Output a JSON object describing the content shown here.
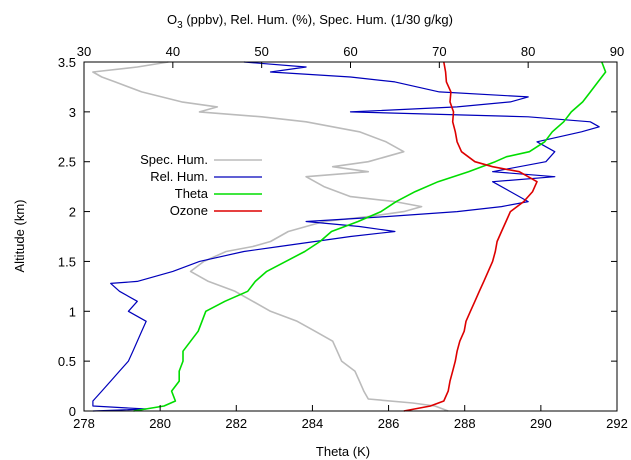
{
  "chart_data": {
    "type": "line",
    "top_label": {
      "o3": "O",
      "sub": "3",
      "rest": " (ppbv), Rel. Hum. (%), Spec. Hum. (1/30 g/kg)"
    },
    "xlabel": "Theta (K)",
    "ylabel": "Altitude (km)",
    "xlim": [
      278,
      292
    ],
    "x2lim": [
      30,
      90
    ],
    "ylim": [
      0,
      3.5
    ],
    "x_ticks": [
      "278",
      "280",
      "282",
      "284",
      "286",
      "288",
      "290",
      "292"
    ],
    "x2_ticks": [
      "30",
      "40",
      "50",
      "60",
      "70",
      "80",
      "90"
    ],
    "y_ticks": [
      "0",
      "0.5",
      "1",
      "1.5",
      "2",
      "2.5",
      "3",
      "3.5"
    ],
    "grid": false,
    "legend_position": "left",
    "series": [
      {
        "name": "Spec. Hum.",
        "axis": "top",
        "color": "#bbbbbb",
        "points": [
          [
            71,
            0.0
          ],
          [
            69.5,
            0.05
          ],
          [
            67,
            0.08
          ],
          [
            62,
            0.12
          ],
          [
            61.5,
            0.2
          ],
          [
            61,
            0.3
          ],
          [
            60.5,
            0.4
          ],
          [
            59,
            0.5
          ],
          [
            58.5,
            0.6
          ],
          [
            58,
            0.7
          ],
          [
            56,
            0.8
          ],
          [
            54,
            0.9
          ],
          [
            51,
            1.0
          ],
          [
            49,
            1.1
          ],
          [
            47,
            1.2
          ],
          [
            44,
            1.3
          ],
          [
            43,
            1.35
          ],
          [
            42,
            1.4
          ],
          [
            43.5,
            1.5
          ],
          [
            46,
            1.6
          ],
          [
            49,
            1.65
          ],
          [
            51,
            1.7
          ],
          [
            53,
            1.8
          ],
          [
            55,
            1.85
          ],
          [
            57,
            1.9
          ],
          [
            62,
            1.95
          ],
          [
            66,
            2.0
          ],
          [
            68,
            2.05
          ],
          [
            65,
            2.1
          ],
          [
            60,
            2.15
          ],
          [
            57,
            2.25
          ],
          [
            55,
            2.35
          ],
          [
            62,
            2.4
          ],
          [
            58,
            2.45
          ],
          [
            62,
            2.5
          ],
          [
            66,
            2.6
          ],
          [
            64,
            2.7
          ],
          [
            61,
            2.8
          ],
          [
            58,
            2.85
          ],
          [
            55,
            2.9
          ],
          [
            50,
            2.95
          ],
          [
            43,
            3.0
          ],
          [
            45,
            3.05
          ],
          [
            41,
            3.1
          ],
          [
            36.5,
            3.2
          ],
          [
            33.5,
            3.3
          ],
          [
            32,
            3.35
          ],
          [
            31,
            3.4
          ],
          [
            36,
            3.45
          ],
          [
            39.5,
            3.5
          ]
        ]
      },
      {
        "name": "Rel. Hum.",
        "axis": "top",
        "color": "#0000bb",
        "points": [
          [
            31,
            0.0
          ],
          [
            37,
            0.02
          ],
          [
            31,
            0.05
          ],
          [
            31,
            0.1
          ],
          [
            32,
            0.2
          ],
          [
            33,
            0.3
          ],
          [
            34,
            0.4
          ],
          [
            35,
            0.5
          ],
          [
            35.5,
            0.6
          ],
          [
            36,
            0.7
          ],
          [
            36.5,
            0.8
          ],
          [
            37,
            0.9
          ],
          [
            35,
            1.0
          ],
          [
            36,
            1.1
          ],
          [
            34,
            1.2
          ],
          [
            33,
            1.28
          ],
          [
            36,
            1.3
          ],
          [
            40,
            1.4
          ],
          [
            43,
            1.5
          ],
          [
            48,
            1.6
          ],
          [
            52,
            1.65
          ],
          [
            56,
            1.7
          ],
          [
            60,
            1.75
          ],
          [
            65,
            1.8
          ],
          [
            61,
            1.85
          ],
          [
            55,
            1.9
          ],
          [
            64,
            1.95
          ],
          [
            72,
            2.0
          ],
          [
            77,
            2.05
          ],
          [
            80,
            2.1
          ],
          [
            78,
            2.2
          ],
          [
            76,
            2.3
          ],
          [
            83,
            2.35
          ],
          [
            76,
            2.4
          ],
          [
            82,
            2.5
          ],
          [
            83,
            2.6
          ],
          [
            81,
            2.7
          ],
          [
            86,
            2.8
          ],
          [
            88,
            2.85
          ],
          [
            87,
            2.9
          ],
          [
            80,
            2.95
          ],
          [
            60,
            3.0
          ],
          [
            72,
            3.05
          ],
          [
            78,
            3.1
          ],
          [
            80,
            3.15
          ],
          [
            70,
            3.2
          ],
          [
            65,
            3.3
          ],
          [
            60,
            3.35
          ],
          [
            51,
            3.4
          ],
          [
            55,
            3.45
          ],
          [
            48,
            3.5
          ]
        ]
      },
      {
        "name": "Theta",
        "axis": "bottom",
        "color": "#00dd00",
        "points": [
          [
            279.3,
            0.0
          ],
          [
            280.1,
            0.05
          ],
          [
            280.4,
            0.1
          ],
          [
            280.3,
            0.2
          ],
          [
            280.5,
            0.3
          ],
          [
            280.5,
            0.4
          ],
          [
            280.6,
            0.5
          ],
          [
            280.6,
            0.6
          ],
          [
            280.8,
            0.7
          ],
          [
            281.0,
            0.8
          ],
          [
            281.1,
            0.9
          ],
          [
            281.2,
            1.0
          ],
          [
            281.7,
            1.1
          ],
          [
            282.3,
            1.2
          ],
          [
            282.5,
            1.3
          ],
          [
            282.8,
            1.4
          ],
          [
            283.3,
            1.5
          ],
          [
            283.8,
            1.6
          ],
          [
            284.2,
            1.7
          ],
          [
            284.5,
            1.8
          ],
          [
            285.2,
            1.9
          ],
          [
            285.8,
            2.0
          ],
          [
            286.2,
            2.1
          ],
          [
            286.7,
            2.2
          ],
          [
            287.3,
            2.3
          ],
          [
            288.1,
            2.4
          ],
          [
            288.8,
            2.5
          ],
          [
            289.1,
            2.55
          ],
          [
            289.7,
            2.6
          ],
          [
            290.1,
            2.7
          ],
          [
            290.3,
            2.8
          ],
          [
            290.6,
            2.9
          ],
          [
            290.8,
            3.0
          ],
          [
            291.1,
            3.1
          ],
          [
            291.3,
            3.2
          ],
          [
            291.5,
            3.3
          ],
          [
            291.7,
            3.4
          ],
          [
            291.6,
            3.5
          ]
        ]
      },
      {
        "name": "Ozone",
        "axis": "top",
        "color": "#dd0000",
        "points": [
          [
            66,
            0.0
          ],
          [
            69,
            0.05
          ],
          [
            70.5,
            0.1
          ],
          [
            71,
            0.2
          ],
          [
            71.2,
            0.3
          ],
          [
            71.5,
            0.4
          ],
          [
            71.8,
            0.5
          ],
          [
            72,
            0.6
          ],
          [
            72.3,
            0.7
          ],
          [
            72.8,
            0.8
          ],
          [
            73,
            0.9
          ],
          [
            73.5,
            1.0
          ],
          [
            74,
            1.1
          ],
          [
            74.5,
            1.2
          ],
          [
            75,
            1.3
          ],
          [
            75.5,
            1.4
          ],
          [
            76,
            1.5
          ],
          [
            76.3,
            1.6
          ],
          [
            76.5,
            1.7
          ],
          [
            77,
            1.8
          ],
          [
            77.5,
            1.9
          ],
          [
            78,
            2.0
          ],
          [
            79.5,
            2.1
          ],
          [
            80.5,
            2.2
          ],
          [
            81,
            2.3
          ],
          [
            79,
            2.4
          ],
          [
            76,
            2.45
          ],
          [
            74,
            2.5
          ],
          [
            72.5,
            2.6
          ],
          [
            72,
            2.7
          ],
          [
            71.8,
            2.8
          ],
          [
            71.5,
            2.9
          ],
          [
            71.6,
            3.0
          ],
          [
            71.2,
            3.1
          ],
          [
            71.3,
            3.2
          ],
          [
            70.8,
            3.3
          ],
          [
            70.7,
            3.4
          ],
          [
            70.5,
            3.5
          ]
        ]
      }
    ]
  }
}
